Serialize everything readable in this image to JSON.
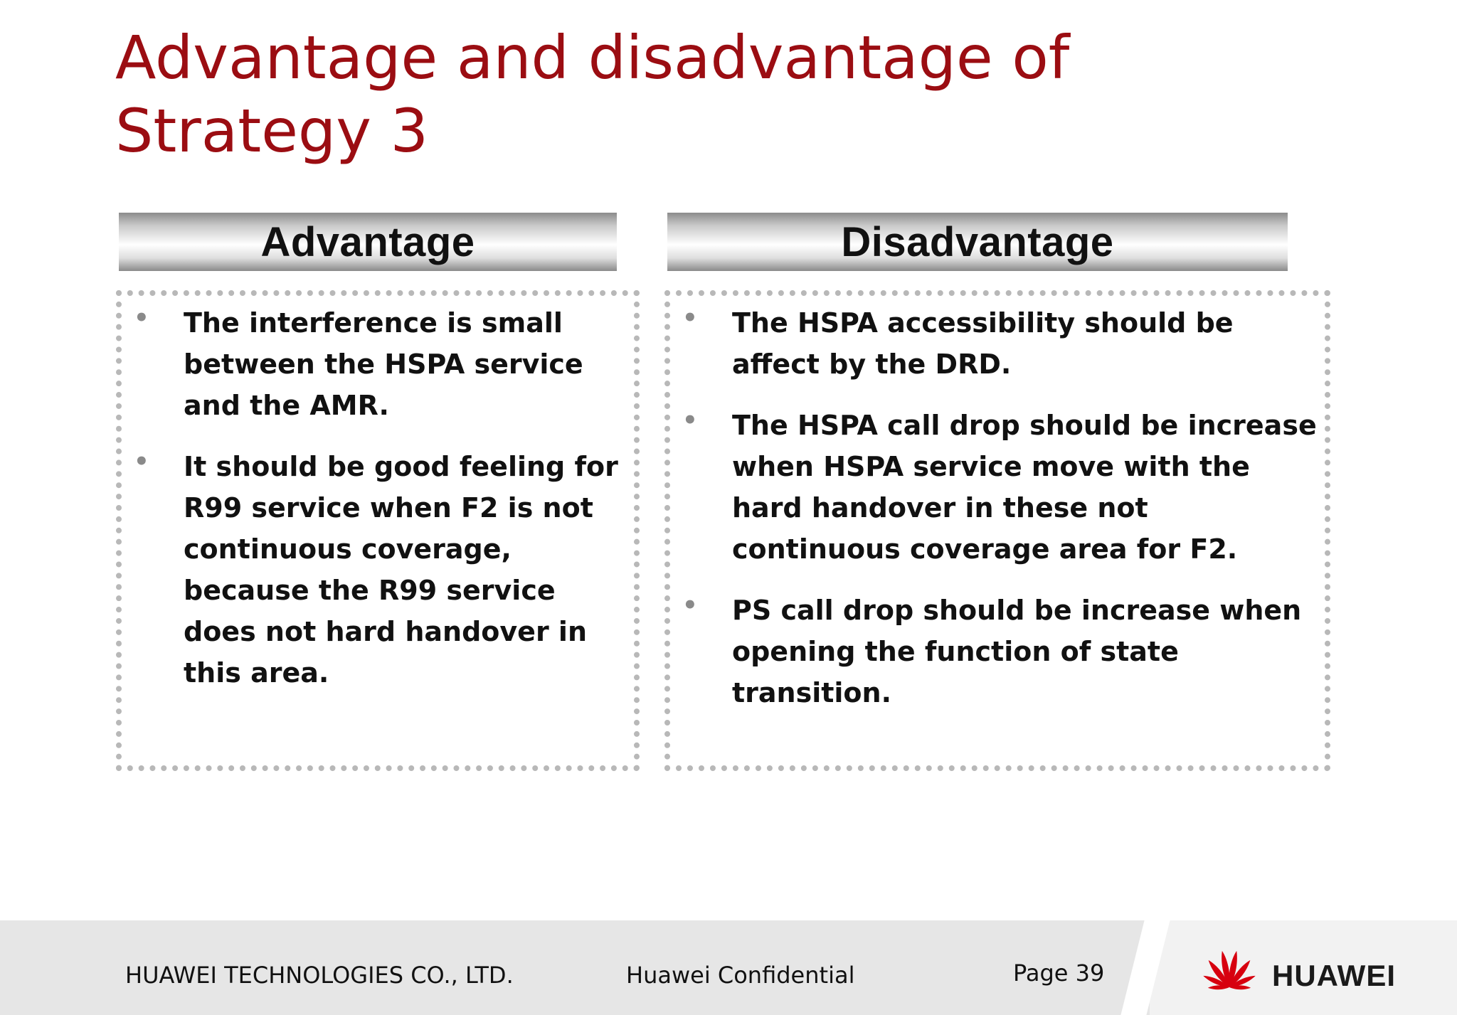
{
  "slide": {
    "title": "Advantage and disadvantage of Strategy 3"
  },
  "advantage": {
    "header": "Advantage",
    "items": [
      "The interference is small between the HSPA service and the AMR.",
      "It should be good feeling for R99 service when F2 is not continuous coverage, because the R99 service does not hard handover in this area."
    ]
  },
  "disadvantage": {
    "header": "Disadvantage",
    "items": [
      "The HSPA accessibility should be affect by the DRD.",
      "The HSPA call drop should be increase when HSPA service move with the hard handover in these not continuous coverage  area for F2.",
      "PS call drop should be increase when opening the function of  state transition."
    ]
  },
  "footer": {
    "company": "HUAWEI TECHNOLOGIES CO., LTD.",
    "confidential": "Huawei Confidential",
    "page": "Page 39",
    "logo_text": "HUAWEI",
    "logo_icon": "huawei-petal-logo",
    "brand_color": "#d7000f"
  },
  "colors": {
    "title": "#9b0d12",
    "bullet": "#8a8a8a",
    "border": "#b8b8b8"
  }
}
